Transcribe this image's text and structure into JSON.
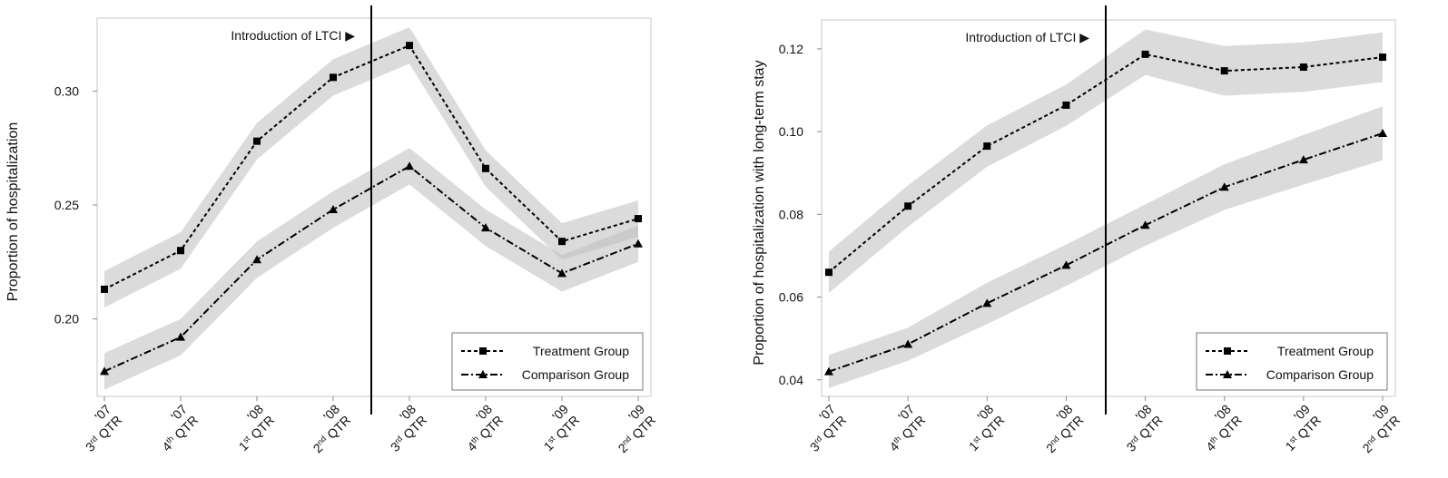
{
  "chart_data": [
    {
      "type": "line",
      "ylabel": "Proportion of hospitalization",
      "annotation": "Introduction of LTCI ▶",
      "categories": [
        "'07 3rd QTR",
        "'07 4th QTR",
        "'08 1st QTR",
        "'08 2nd QTR",
        "'08 3rd QTR",
        "'08 4th QTR",
        "'09 1st QTR",
        "'09 2nd QTR"
      ],
      "ylim": [
        0.166,
        0.332
      ],
      "yticks": [
        {
          "value": 0.2,
          "label": "0.20"
        },
        {
          "value": 0.25,
          "label": "0.25"
        },
        {
          "value": 0.3,
          "label": "0.30"
        }
      ],
      "grid": false,
      "legend": "lower right",
      "series": [
        {
          "name": "Treatment Group",
          "color": "#000000",
          "marker": "square",
          "values": [
            0.213,
            0.23,
            0.278,
            0.306,
            0.32,
            0.266,
            0.234,
            0.244
          ],
          "lower": [
            0.205,
            0.222,
            0.27,
            0.298,
            0.312,
            0.258,
            0.226,
            0.236
          ],
          "upper": [
            0.221,
            0.238,
            0.286,
            0.314,
            0.328,
            0.274,
            0.242,
            0.252
          ]
        },
        {
          "name": "Comparison Group",
          "color": "#000000",
          "marker": "triangle",
          "values": [
            0.177,
            0.192,
            0.226,
            0.248,
            0.267,
            0.24,
            0.22,
            0.233
          ],
          "lower": [
            0.169,
            0.184,
            0.218,
            0.24,
            0.259,
            0.232,
            0.212,
            0.225
          ],
          "upper": [
            0.185,
            0.2,
            0.234,
            0.256,
            0.275,
            0.248,
            0.228,
            0.241
          ]
        }
      ]
    },
    {
      "type": "line",
      "ylabel": "Proportion of hospitalization with long-term stay",
      "annotation": "Introduction of LTCI ▶",
      "categories": [
        "'07 3rd QTR",
        "'07 4th QTR",
        "'08 1st QTR",
        "'08 2nd QTR",
        "'08 3rd QTR",
        "'08 4th QTR",
        "'09 1st QTR",
        "'09 2nd QTR"
      ],
      "ylim": [
        0.036,
        0.127
      ],
      "yticks": [
        {
          "value": 0.04,
          "label": "0.04"
        },
        {
          "value": 0.06,
          "label": "0.06"
        },
        {
          "value": 0.08,
          "label": "0.08"
        },
        {
          "value": 0.1,
          "label": "0.10"
        },
        {
          "value": 0.12,
          "label": "0.12"
        }
      ],
      "grid": false,
      "legend": "lower right",
      "series": [
        {
          "name": "Treatment Group",
          "color": "#000000",
          "marker": "square",
          "values": [
            0.066,
            0.082,
            0.0965,
            0.1064,
            0.1187,
            0.1147,
            0.1156,
            0.118
          ],
          "lower": [
            0.061,
            0.077,
            0.0915,
            0.1014,
            0.1137,
            0.1087,
            0.1096,
            0.112
          ],
          "upper": [
            0.071,
            0.087,
            0.1015,
            0.1114,
            0.1247,
            0.1207,
            0.1216,
            0.124
          ]
        },
        {
          "name": "Comparison Group",
          "color": "#000000",
          "marker": "triangle",
          "values": [
            0.042,
            0.0486,
            0.0585,
            0.0677,
            0.0774,
            0.0866,
            0.0932,
            0.0996
          ],
          "lower": [
            0.038,
            0.0446,
            0.0535,
            0.0627,
            0.0724,
            0.0811,
            0.0872,
            0.0931
          ],
          "upper": [
            0.046,
            0.0526,
            0.0635,
            0.0727,
            0.0824,
            0.0921,
            0.0992,
            0.1061
          ]
        }
      ]
    }
  ]
}
